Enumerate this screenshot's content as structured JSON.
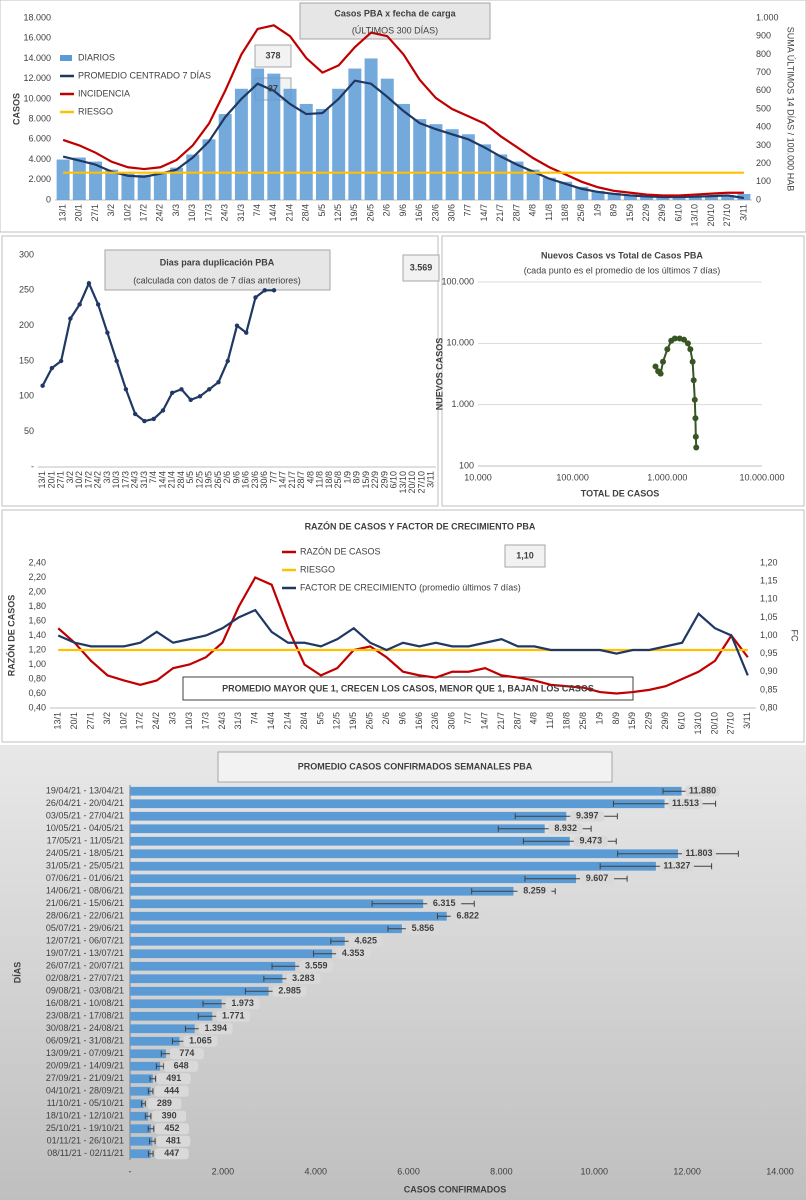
{
  "chart_data": [
    {
      "type": "bar",
      "title": "Casos  PBA x fecha de carga",
      "subtitle": "(ÚLTIMOS 300  DÍAS)",
      "ylabel": "CASOS",
      "y2label": "SUMA ÚLTIMOS 14 DÍAS / 100.000 HAB",
      "legend": "upper left",
      "grid": false,
      "annotations": [
        "378",
        "37"
      ],
      "categories": [
        "13/1",
        "20/1",
        "27/1",
        "3/2",
        "10/2",
        "17/2",
        "24/2",
        "3/3",
        "10/3",
        "17/3",
        "24/3",
        "31/3",
        "7/4",
        "14/4",
        "21/4",
        "28/4",
        "5/5",
        "12/5",
        "19/5",
        "26/5",
        "2/6",
        "9/6",
        "16/6",
        "23/6",
        "30/6",
        "7/7",
        "14/7",
        "21/7",
        "28/7",
        "4/8",
        "11/8",
        "18/8",
        "25/8",
        "1/9",
        "8/9",
        "15/9",
        "22/9",
        "29/9",
        "6/10",
        "13/10",
        "20/10",
        "27/10",
        "3/11"
      ],
      "series": [
        {
          "name": "DIARIOS",
          "type": "bar",
          "color": "#5b9bd5",
          "values": [
            4000,
            4200,
            3800,
            3000,
            2600,
            2500,
            2800,
            3200,
            4500,
            6000,
            8500,
            11000,
            13000,
            12500,
            11000,
            9500,
            9000,
            11000,
            13000,
            14000,
            12000,
            9500,
            8000,
            7500,
            7000,
            6500,
            5500,
            4500,
            3800,
            3000,
            2200,
            1800,
            1300,
            900,
            700,
            500,
            400,
            300,
            300,
            350,
            400,
            500,
            600
          ]
        },
        {
          "name": "PROMEDIO CENTRADO 7 DÍAS",
          "type": "line",
          "color": "#1f3864",
          "values": [
            4300,
            3900,
            3500,
            2800,
            2400,
            2300,
            2600,
            3000,
            4200,
            5800,
            8200,
            10000,
            11500,
            10800,
            9500,
            8500,
            8600,
            10000,
            11800,
            11500,
            10200,
            8800,
            7600,
            7000,
            6500,
            6000,
            5200,
            4300,
            3500,
            2800,
            2100,
            1600,
            1100,
            800,
            600,
            450,
            350,
            300,
            300,
            330,
            380,
            450,
            200
          ]
        },
        {
          "name": "INCIDENCIA",
          "type": "line",
          "axis": "y2",
          "color": "#c00000",
          "values": [
            330,
            300,
            260,
            210,
            180,
            170,
            180,
            220,
            300,
            420,
            600,
            800,
            940,
            960,
            900,
            780,
            700,
            740,
            840,
            920,
            900,
            800,
            660,
            560,
            500,
            460,
            420,
            350,
            290,
            230,
            180,
            140,
            100,
            70,
            50,
            40,
            30,
            25,
            25,
            30,
            35,
            40,
            40
          ]
        },
        {
          "name": "RIESGO",
          "type": "line",
          "axis": "y2",
          "color": "#ffc000",
          "values": [
            150,
            150,
            150,
            150,
            150,
            150,
            150,
            150,
            150,
            150,
            150,
            150,
            150,
            150,
            150,
            150,
            150,
            150,
            150,
            150,
            150,
            150,
            150,
            150,
            150,
            150,
            150,
            150,
            150,
            150,
            150,
            150,
            150,
            150,
            150,
            150,
            150,
            150,
            150,
            150,
            150,
            150,
            150
          ]
        }
      ],
      "ylim": [
        0,
        18000
      ],
      "yticks": [
        0,
        {
          "value": 2000,
          "label": "2.000"
        },
        {
          "value": 4000,
          "label": "4.000"
        },
        {
          "value": 6000,
          "label": "6.000"
        },
        {
          "value": 8000,
          "label": "8.000"
        },
        {
          "value": 10000,
          "label": "10.000"
        },
        {
          "value": 12000,
          "label": "12.000"
        },
        {
          "value": 14000,
          "label": "14.000"
        },
        {
          "value": 16000,
          "label": "16.000"
        },
        {
          "value": 18000,
          "label": "18.000"
        }
      ],
      "y2lim": [
        0,
        1000
      ],
      "y2ticks": [
        0,
        100,
        200,
        300,
        400,
        500,
        600,
        700,
        800,
        900,
        {
          "value": 1000,
          "label": "1.000"
        }
      ]
    },
    {
      "type": "line",
      "title": "Dias para duplicación PBA",
      "subtitle": "(calculada con datos de 7 días anteriores)",
      "annotations": [
        "3.569"
      ],
      "grid": false,
      "categories": [
        "13/1",
        "20/1",
        "27/1",
        "3/2",
        "10/2",
        "17/2",
        "24/2",
        "3/3",
        "10/3",
        "17/3",
        "24/3",
        "31/3",
        "7/4",
        "14/4",
        "21/4",
        "28/4",
        "5/5",
        "12/5",
        "19/5",
        "26/5",
        "2/6",
        "9/6",
        "16/6",
        "23/6",
        "30/6",
        "7/7",
        "14/7",
        "21/7",
        "28/7",
        "4/8",
        "11/8",
        "18/8",
        "25/8",
        "1/9",
        "8/9",
        "15/9",
        "22/9",
        "29/9",
        "6/10",
        "13/10",
        "20/10",
        "27/10",
        "3/11"
      ],
      "series": [
        {
          "name": null,
          "color": "#1f3864",
          "values": [
            115,
            140,
            150,
            210,
            230,
            260,
            230,
            190,
            150,
            110,
            75,
            65,
            68,
            80,
            105,
            110,
            95,
            100,
            110,
            120,
            150,
            200,
            190,
            240,
            250,
            250,
            null,
            null,
            null,
            null,
            null,
            null,
            null,
            null,
            null,
            null,
            null,
            null,
            null,
            null,
            null,
            null,
            null
          ]
        }
      ],
      "ylim": [
        0,
        300
      ],
      "yticks": [
        {
          "value": 0,
          "label": "-"
        },
        50,
        100,
        150,
        200,
        250,
        300
      ]
    },
    {
      "type": "scatter",
      "title": "Nuevos Casos vs Total de Casos PBA",
      "subtitle": "(cada punto es el promedio de los últimos 7 días)",
      "xlabel": "TOTAL DE CASOS",
      "ylabel": "NUEVOS  CASOS",
      "color": "#375623",
      "log_x": true,
      "log_y": true,
      "grid": true,
      "x": [
        750000,
        800000,
        850000,
        900000,
        1000000,
        1100000,
        1200000,
        1350000,
        1500000,
        1650000,
        1750000,
        1850000,
        1900000,
        1950000,
        1980000,
        2000000,
        2020000
      ],
      "values": [
        4200,
        3500,
        3200,
        5000,
        8000,
        11000,
        12000,
        12000,
        11500,
        10000,
        8000,
        5000,
        2500,
        1200,
        600,
        300,
        200
      ],
      "xlim": [
        10000,
        10000000
      ],
      "xticks": [
        {
          "value": 10000,
          "label": "10.000"
        },
        {
          "value": 100000,
          "label": "100.000"
        },
        {
          "value": 1000000,
          "label": "1.000.000"
        },
        {
          "value": 10000000,
          "label": "10.000.000"
        }
      ],
      "ylim": [
        100,
        100000
      ],
      "yticks": [
        100,
        {
          "value": 1000,
          "label": "1.000"
        },
        {
          "value": 10000,
          "label": "10.000"
        },
        {
          "value": 100000,
          "label": "100.000"
        }
      ]
    },
    {
      "type": "line",
      "title": "RAZÓN DE CASOS Y FACTOR DE CRECIMIENTO PBA",
      "ylabel": "RAZÓN DE CASOS",
      "y2label": "FC",
      "legend": "upper center",
      "grid": false,
      "annotations": [
        "1,10",
        "PROMEDIO MAYOR QUE 1, CRECEN LOS CASOS, MENOR QUE 1, BAJAN LOS CASOS"
      ],
      "categories": [
        "13/1",
        "20/1",
        "27/1",
        "3/2",
        "10/2",
        "17/2",
        "24/2",
        "3/3",
        "10/3",
        "17/3",
        "24/3",
        "31/3",
        "7/4",
        "14/4",
        "21/4",
        "28/4",
        "5/5",
        "12/5",
        "19/5",
        "26/5",
        "2/6",
        "9/6",
        "16/6",
        "23/6",
        "30/6",
        "7/7",
        "14/7",
        "21/7",
        "28/7",
        "4/8",
        "11/8",
        "18/8",
        "25/8",
        "1/9",
        "8/9",
        "15/9",
        "22/9",
        "29/9",
        "6/10",
        "13/10",
        "20/10",
        "27/10",
        "3/11"
      ],
      "series": [
        {
          "name": "RAZÓN DE CASOS",
          "color": "#c00000",
          "values": [
            1.5,
            1.3,
            1.05,
            0.85,
            0.78,
            0.72,
            0.78,
            0.95,
            1.0,
            1.1,
            1.3,
            1.8,
            2.2,
            2.1,
            1.5,
            1.0,
            0.85,
            0.95,
            1.2,
            1.25,
            1.1,
            0.9,
            0.85,
            0.82,
            0.9,
            0.9,
            0.95,
            0.85,
            0.82,
            0.78,
            0.72,
            0.7,
            0.68,
            0.62,
            0.6,
            0.62,
            0.65,
            0.7,
            0.8,
            0.9,
            1.05,
            1.4,
            1.1
          ]
        },
        {
          "name": "RIESGO",
          "color": "#ffc000",
          "values": [
            1.2,
            1.2,
            1.2,
            1.2,
            1.2,
            1.2,
            1.2,
            1.2,
            1.2,
            1.2,
            1.2,
            1.2,
            1.2,
            1.2,
            1.2,
            1.2,
            1.2,
            1.2,
            1.2,
            1.2,
            1.2,
            1.2,
            1.2,
            1.2,
            1.2,
            1.2,
            1.2,
            1.2,
            1.2,
            1.2,
            1.2,
            1.2,
            1.2,
            1.2,
            1.2,
            1.2,
            1.2,
            1.2,
            1.2,
            1.2,
            1.2,
            1.2,
            1.2
          ]
        },
        {
          "name": "FACTOR DE CRECIMIENTO (promedio últimos 7 días)",
          "axis": "y2",
          "color": "#1f3864",
          "values": [
            1.0,
            0.98,
            0.97,
            0.97,
            0.97,
            0.98,
            1.01,
            0.98,
            0.99,
            1.0,
            1.02,
            1.05,
            1.07,
            1.01,
            0.98,
            0.98,
            0.97,
            0.99,
            1.02,
            0.98,
            0.96,
            0.98,
            0.97,
            0.98,
            0.97,
            0.97,
            0.98,
            0.99,
            0.97,
            0.97,
            0.96,
            0.96,
            0.96,
            0.96,
            0.95,
            0.96,
            0.96,
            0.97,
            0.98,
            1.06,
            1.02,
            1.0,
            0.89
          ]
        }
      ],
      "ylim": [
        0.4,
        2.4
      ],
      "yticks": [
        {
          "value": 0.4,
          "label": "0,40"
        },
        {
          "value": 0.6,
          "label": "0,60"
        },
        {
          "value": 0.8,
          "label": "0,80"
        },
        {
          "value": 1.0,
          "label": "1,00"
        },
        {
          "value": 1.2,
          "label": "1,20"
        },
        {
          "value": 1.4,
          "label": "1,40"
        },
        {
          "value": 1.6,
          "label": "1,60"
        },
        {
          "value": 1.8,
          "label": "1,80"
        },
        {
          "value": 2.0,
          "label": "2,00"
        },
        {
          "value": 2.2,
          "label": "2,20"
        },
        {
          "value": 2.4,
          "label": "2,40"
        }
      ],
      "y2lim": [
        0.8,
        1.2
      ],
      "y2ticks": [
        {
          "value": 0.8,
          "label": "0,80"
        },
        {
          "value": 0.85,
          "label": "0,85"
        },
        {
          "value": 0.9,
          "label": "0,90"
        },
        {
          "value": 0.95,
          "label": "0,95"
        },
        {
          "value": 1.0,
          "label": "1,00"
        },
        {
          "value": 1.05,
          "label": "1,05"
        },
        {
          "value": 1.1,
          "label": "1,10"
        },
        {
          "value": 1.15,
          "label": "1,15"
        },
        {
          "value": 1.2,
          "label": "1,20"
        }
      ]
    },
    {
      "type": "bar",
      "orientation": "horizontal",
      "title": "PROMEDIO CASOS CONFIRMADOS SEMANALES PBA",
      "ylabel": "DÍAS",
      "xlabel": "CASOS CONFIRMADOS",
      "color": "#5b9bd5",
      "grid": false,
      "categories": [
        "19/04/21 - 13/04/21",
        "26/04/21 - 20/04/21",
        "03/05/21 - 27/04/21",
        "10/05/21 - 04/05/21",
        "17/05/21 - 11/05/21",
        "24/05/21 - 18/05/21",
        "31/05/21 - 25/05/21",
        "07/06/21 - 01/06/21",
        "14/06/21 - 08/06/21",
        "21/06/21 - 15/06/21",
        "28/06/21 - 22/06/21",
        "05/07/21 - 29/06/21",
        "12/07/21 - 06/07/21",
        "19/07/21 - 13/07/21",
        "26/07/21 - 20/07/21",
        "02/08/21 - 27/07/21",
        "09/08/21 - 03/08/21",
        "16/08/21 - 10/08/21",
        "23/08/21 - 17/08/21",
        "30/08/21 - 24/08/21",
        "06/09/21 - 31/08/21",
        "13/09/21 - 07/09/21",
        "20/09/21 - 14/09/21",
        "27/09/21 - 21/09/21",
        "04/10/21 - 28/09/21",
        "11/10/21 - 05/10/21",
        "18/10/21 - 12/10/21",
        "25/10/21 - 19/10/21",
        "01/11/21 - 26/10/21",
        "08/11/21 - 02/11/21"
      ],
      "values": [
        11880,
        11513,
        9397,
        8932,
        9473,
        11803,
        11327,
        9607,
        8259,
        6315,
        6822,
        5856,
        4625,
        4353,
        3559,
        3283,
        2985,
        1973,
        1771,
        1394,
        1065,
        774,
        648,
        491,
        444,
        289,
        390,
        452,
        481,
        447
      ],
      "value_labels": [
        "11.880",
        "11.513",
        "9.397",
        "8.932",
        "9.473",
        "11.803",
        "11.327",
        "9.607",
        "8.259",
        "6.315",
        "6.822",
        "5.856",
        "4.625",
        "4.353",
        "3.559",
        "3.283",
        "2.985",
        "1.973",
        "1.771",
        "1.394",
        "1.065",
        "774",
        "648",
        "491",
        "444",
        "289",
        "390",
        "452",
        "481",
        "447"
      ],
      "errors": [
        400,
        1100,
        1100,
        1000,
        1000,
        1300,
        1200,
        1100,
        900,
        1100,
        200,
        300,
        300,
        400,
        500,
        400,
        500,
        400,
        300,
        200,
        150,
        100,
        80,
        60,
        50,
        40,
        60,
        60,
        60,
        50
      ],
      "xlim": [
        0,
        14000
      ],
      "xticks": [
        {
          "value": 0,
          "label": "-"
        },
        {
          "value": 2000,
          "label": "2.000"
        },
        {
          "value": 4000,
          "label": "4.000"
        },
        {
          "value": 6000,
          "label": "6.000"
        },
        {
          "value": 8000,
          "label": "8.000"
        },
        {
          "value": 10000,
          "label": "10.000"
        },
        {
          "value": 12000,
          "label": "12.000"
        },
        {
          "value": 14000,
          "label": "14.000"
        }
      ]
    }
  ]
}
